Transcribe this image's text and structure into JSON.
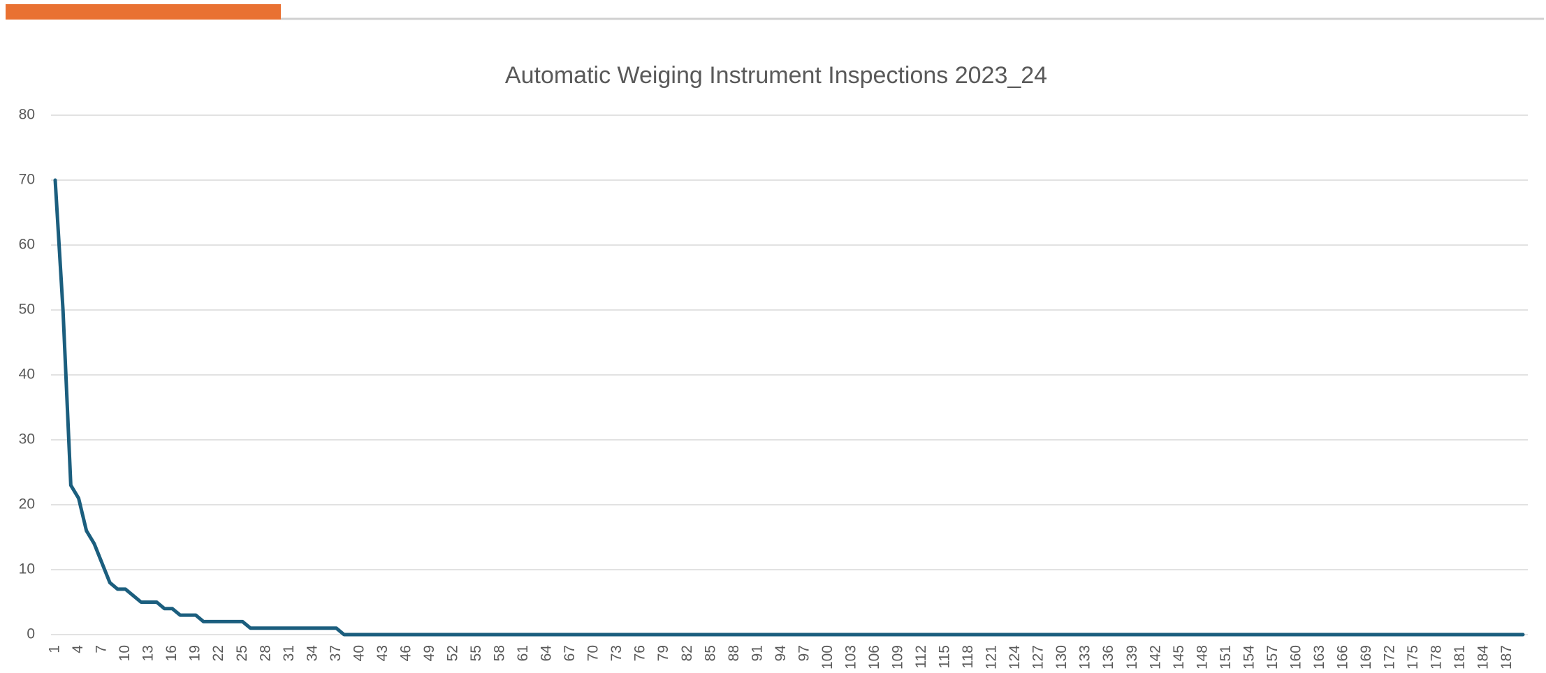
{
  "chart_data": {
    "type": "line",
    "title": "Automatic Weiging Instrument Inspections 2023_24",
    "categories": [
      "1",
      null,
      null,
      "4",
      null,
      null,
      "7",
      null,
      null,
      "10",
      null,
      null,
      "13",
      null,
      null,
      "16",
      null,
      null,
      "19",
      null,
      null,
      "22",
      null,
      null,
      "25",
      null,
      null,
      "28",
      null,
      null,
      "31",
      null,
      null,
      "34",
      null,
      null,
      "37",
      null,
      null,
      "40",
      null,
      null,
      "43",
      null,
      null,
      "46",
      null,
      null,
      "49",
      null,
      null,
      "52",
      null,
      null,
      "55",
      null,
      null,
      "58",
      null,
      null,
      "61",
      null,
      null,
      "64",
      null,
      null,
      "67",
      null,
      null,
      "70",
      null,
      null,
      "73",
      null,
      null,
      "76",
      null,
      null,
      "79",
      null,
      null,
      "82",
      null,
      null,
      "85",
      null,
      null,
      "88",
      null,
      null,
      "91",
      null,
      null,
      "94",
      null,
      null,
      "97",
      null,
      null,
      "100",
      null,
      null,
      "103",
      null,
      null,
      "106",
      null,
      null,
      "109",
      null,
      null,
      "112",
      null,
      null,
      "115",
      null,
      null,
      "118",
      null,
      null,
      "121",
      null,
      null,
      "124",
      null,
      null,
      "127",
      null,
      null,
      "130",
      null,
      null,
      "133",
      null,
      null,
      "136",
      null,
      null,
      "139",
      null,
      null,
      "142",
      null,
      null,
      "145",
      null,
      null,
      "148",
      null,
      null,
      "151",
      null,
      null,
      "154",
      null,
      null,
      "157",
      null,
      null,
      "160",
      null,
      null,
      "163",
      null,
      null,
      "166",
      null,
      null,
      "169",
      null,
      null,
      "172",
      null,
      null,
      "175",
      null,
      null,
      "178",
      null,
      null,
      "181",
      null,
      null,
      "184",
      null,
      null,
      "187",
      null,
      null
    ],
    "values": [
      70,
      50,
      23,
      21,
      16,
      14,
      11,
      8,
      7,
      7,
      6,
      5,
      5,
      5,
      4,
      4,
      3,
      3,
      3,
      2,
      2,
      2,
      2,
      2,
      2,
      1,
      1,
      1,
      1,
      1,
      1,
      1,
      1,
      1,
      1,
      1,
      1,
      0,
      0,
      0,
      0,
      0,
      0,
      0,
      0,
      0,
      0,
      0,
      0,
      0,
      0,
      0,
      0,
      0,
      0,
      0,
      0,
      0,
      0,
      0,
      0,
      0,
      0,
      0,
      0,
      0,
      0,
      0,
      0,
      0,
      0,
      0,
      0,
      0,
      0,
      0,
      0,
      0,
      0,
      0,
      0,
      0,
      0,
      0,
      0,
      0,
      0,
      0,
      0,
      0,
      0,
      0,
      0,
      0,
      0,
      0,
      0,
      0,
      0,
      0,
      0,
      0,
      0,
      0,
      0,
      0,
      0,
      0,
      0,
      0,
      0,
      0,
      0,
      0,
      0,
      0,
      0,
      0,
      0,
      0,
      0,
      0,
      0,
      0,
      0,
      0,
      0,
      0,
      0,
      0,
      0,
      0,
      0,
      0,
      0,
      0,
      0,
      0,
      0,
      0,
      0,
      0,
      0,
      0,
      0,
      0,
      0,
      0,
      0,
      0,
      0,
      0,
      0,
      0,
      0,
      0,
      0,
      0,
      0,
      0,
      0,
      0,
      0,
      0,
      0,
      0,
      0,
      0,
      0,
      0,
      0,
      0,
      0,
      0,
      0,
      0,
      0,
      0,
      0,
      0,
      0,
      0,
      0,
      0,
      0,
      0,
      0,
      0,
      0
    ],
    "color": "#1b5e7e",
    "ylim": [
      0,
      80
    ],
    "yticks": [
      0,
      10,
      20,
      30,
      40,
      50,
      60,
      70,
      80
    ],
    "grid": true
  }
}
